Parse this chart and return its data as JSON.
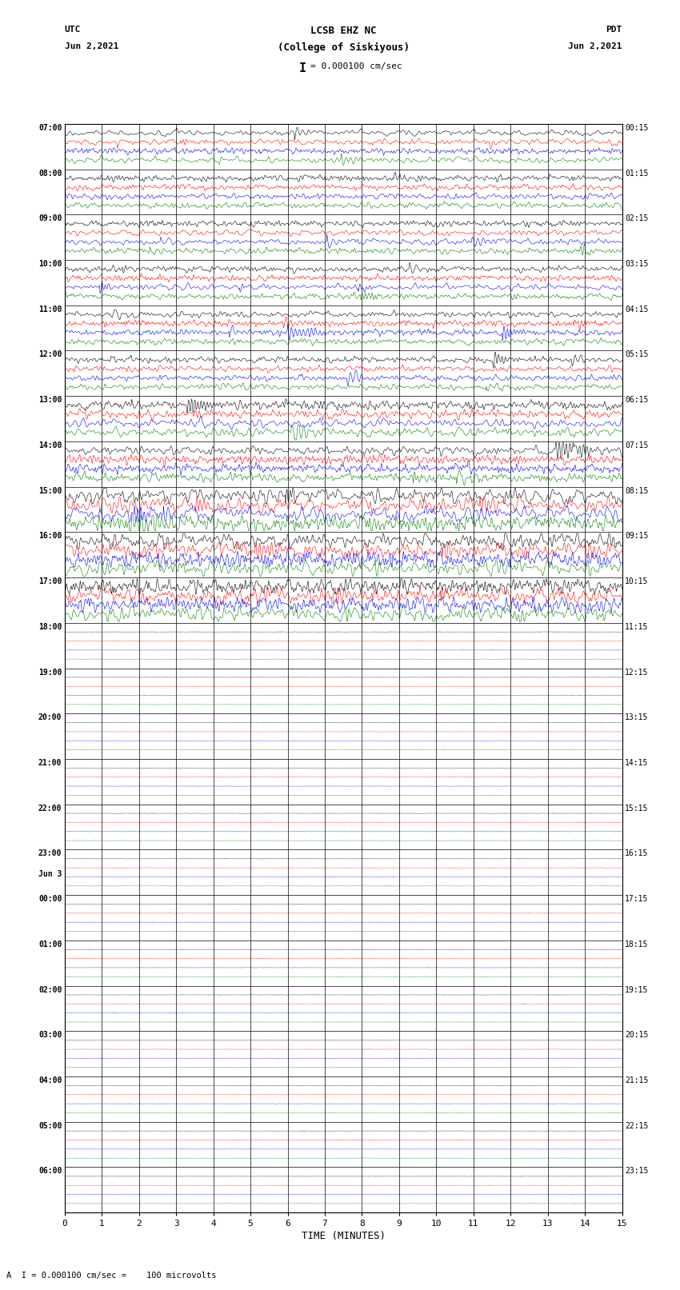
{
  "title_line1": "LCSB EHZ NC",
  "title_line2": "(College of Siskiyous)",
  "scale_label": "I = 0.000100 cm/sec",
  "utc_label": "UTC",
  "utc_date": "Jun 2,2021",
  "pdt_label": "PDT",
  "pdt_date": "Jun 2,2021",
  "xlabel": "TIME (MINUTES)",
  "footer": "A  I = 0.000100 cm/sec =    100 microvolts",
  "left_times_utc": [
    "07:00",
    "08:00",
    "09:00",
    "10:00",
    "11:00",
    "12:00",
    "13:00",
    "14:00",
    "15:00",
    "16:00",
    "17:00",
    "18:00",
    "19:00",
    "20:00",
    "21:00",
    "22:00",
    "23:00",
    "Jun 3",
    "00:00",
    "01:00",
    "02:00",
    "03:00",
    "04:00",
    "05:00",
    "06:00"
  ],
  "right_times_pdt": [
    "00:15",
    "01:15",
    "02:15",
    "03:15",
    "04:15",
    "05:15",
    "06:15",
    "07:15",
    "08:15",
    "09:15",
    "10:15",
    "11:15",
    "12:15",
    "13:15",
    "14:15",
    "15:15",
    "16:15",
    "17:15",
    "18:15",
    "19:15",
    "20:15",
    "21:15",
    "22:15",
    "23:15"
  ],
  "num_rows": 24,
  "traces_per_row": 4,
  "active_rows": 11,
  "colors": [
    "black",
    "red",
    "blue",
    "green"
  ],
  "bg_color": "white",
  "x_ticks": [
    0,
    1,
    2,
    3,
    4,
    5,
    6,
    7,
    8,
    9,
    10,
    11,
    12,
    13,
    14,
    15
  ],
  "xlim": [
    0,
    15
  ],
  "fig_width": 8.5,
  "fig_height": 16.13
}
